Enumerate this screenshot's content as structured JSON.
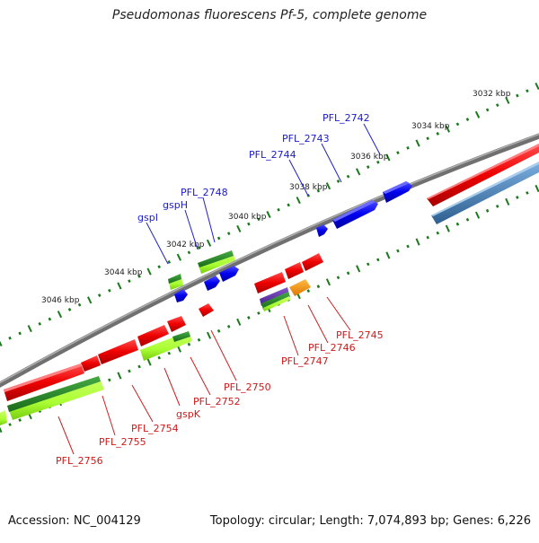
{
  "title": "Pseudomonas fluorescens Pf-5, complete genome",
  "footer": {
    "accession": "Accession: NC_004129",
    "topology": "Topology: circular; Length: 7,074,893 bp; Genes: 6,226"
  },
  "colors": {
    "backbone": "#808080",
    "forward_cds": "#0000e6",
    "reverse_cds": "#e60000",
    "forward_label": "#1a1acc",
    "reverse_label": "#cc1a1a",
    "tick": "#1a7a1a",
    "light_green": "#aaff33",
    "dark_green": "#2a8a2a",
    "steel_blue": "#4682b4",
    "orange": "#ff9900",
    "purple": "#6633aa"
  },
  "kbp_labels": [
    "3032 kbp",
    "3034 kbp",
    "3036 kbp",
    "3038 kbp",
    "3040 kbp",
    "3042 kbp",
    "3044 kbp",
    "3046 kbp"
  ],
  "forward_gene_labels": [
    "PFL_2742",
    "PFL_2743",
    "PFL_2744",
    "PFL_2748",
    "gspH",
    "gspI"
  ],
  "reverse_gene_labels": [
    "PFL_2745",
    "PFL_2746",
    "PFL_2747",
    "PFL_2750",
    "PFL_2752",
    "gspK",
    "PFL_2754",
    "PFL_2755",
    "PFL_2756"
  ]
}
